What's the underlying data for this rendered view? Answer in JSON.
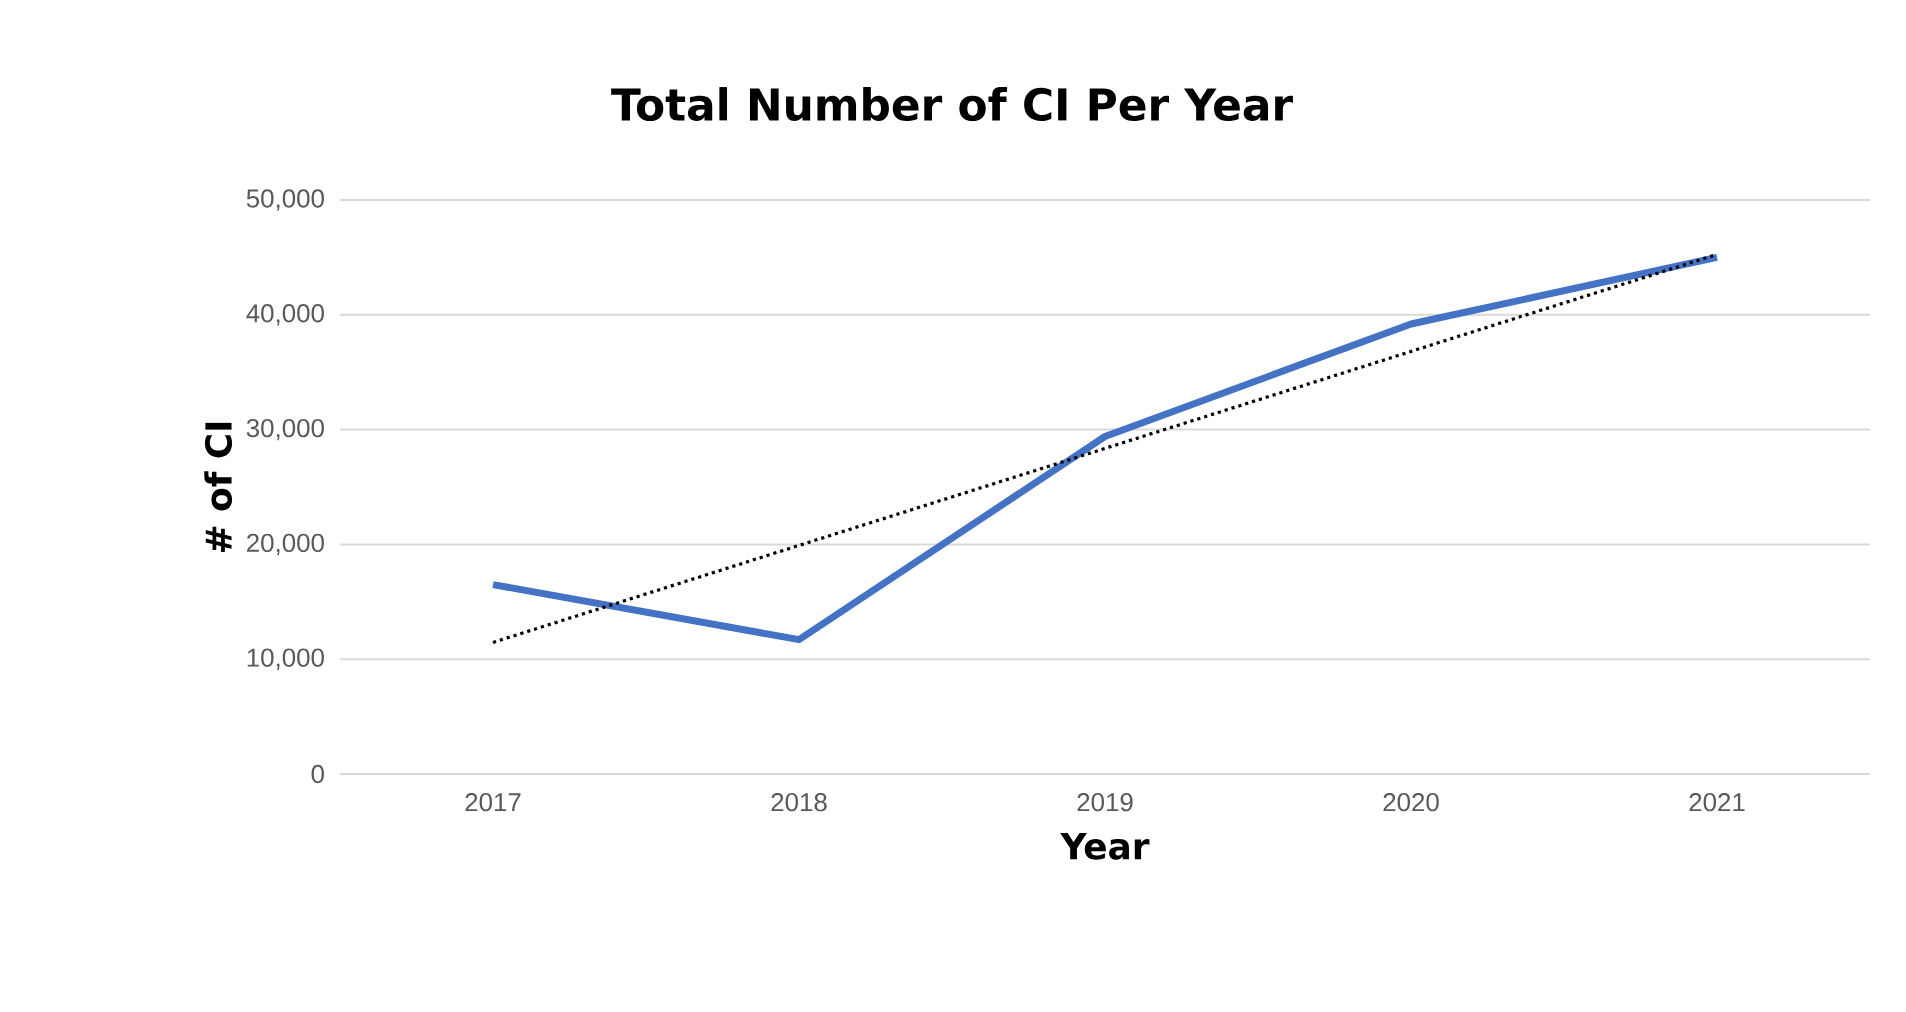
{
  "chart_data": {
    "type": "line",
    "title": "Total Number of CI Per Year",
    "xlabel": "Year",
    "ylabel": "# of CI",
    "categories": [
      "2017",
      "2018",
      "2019",
      "2020",
      "2021"
    ],
    "series": [
      {
        "color": "#4472c4",
        "values": [
          16500,
          11700,
          29400,
          39200,
          45000
        ],
        "line_style": "solid"
      },
      {
        "color": "#000000",
        "values": [
          11460,
          19910,
          28360,
          36810,
          45260
        ],
        "line_style": "dotted"
      }
    ],
    "ylim": [
      0,
      50000
    ],
    "yticks": [
      {
        "value": 0,
        "label": "0"
      },
      {
        "value": 10000,
        "label": "10,000"
      },
      {
        "value": 20000,
        "label": "20,000"
      },
      {
        "value": 30000,
        "label": "30,000"
      },
      {
        "value": 40000,
        "label": "40,000"
      },
      {
        "value": 50000,
        "label": "50,000"
      }
    ],
    "grid": "y",
    "marker": "none"
  }
}
